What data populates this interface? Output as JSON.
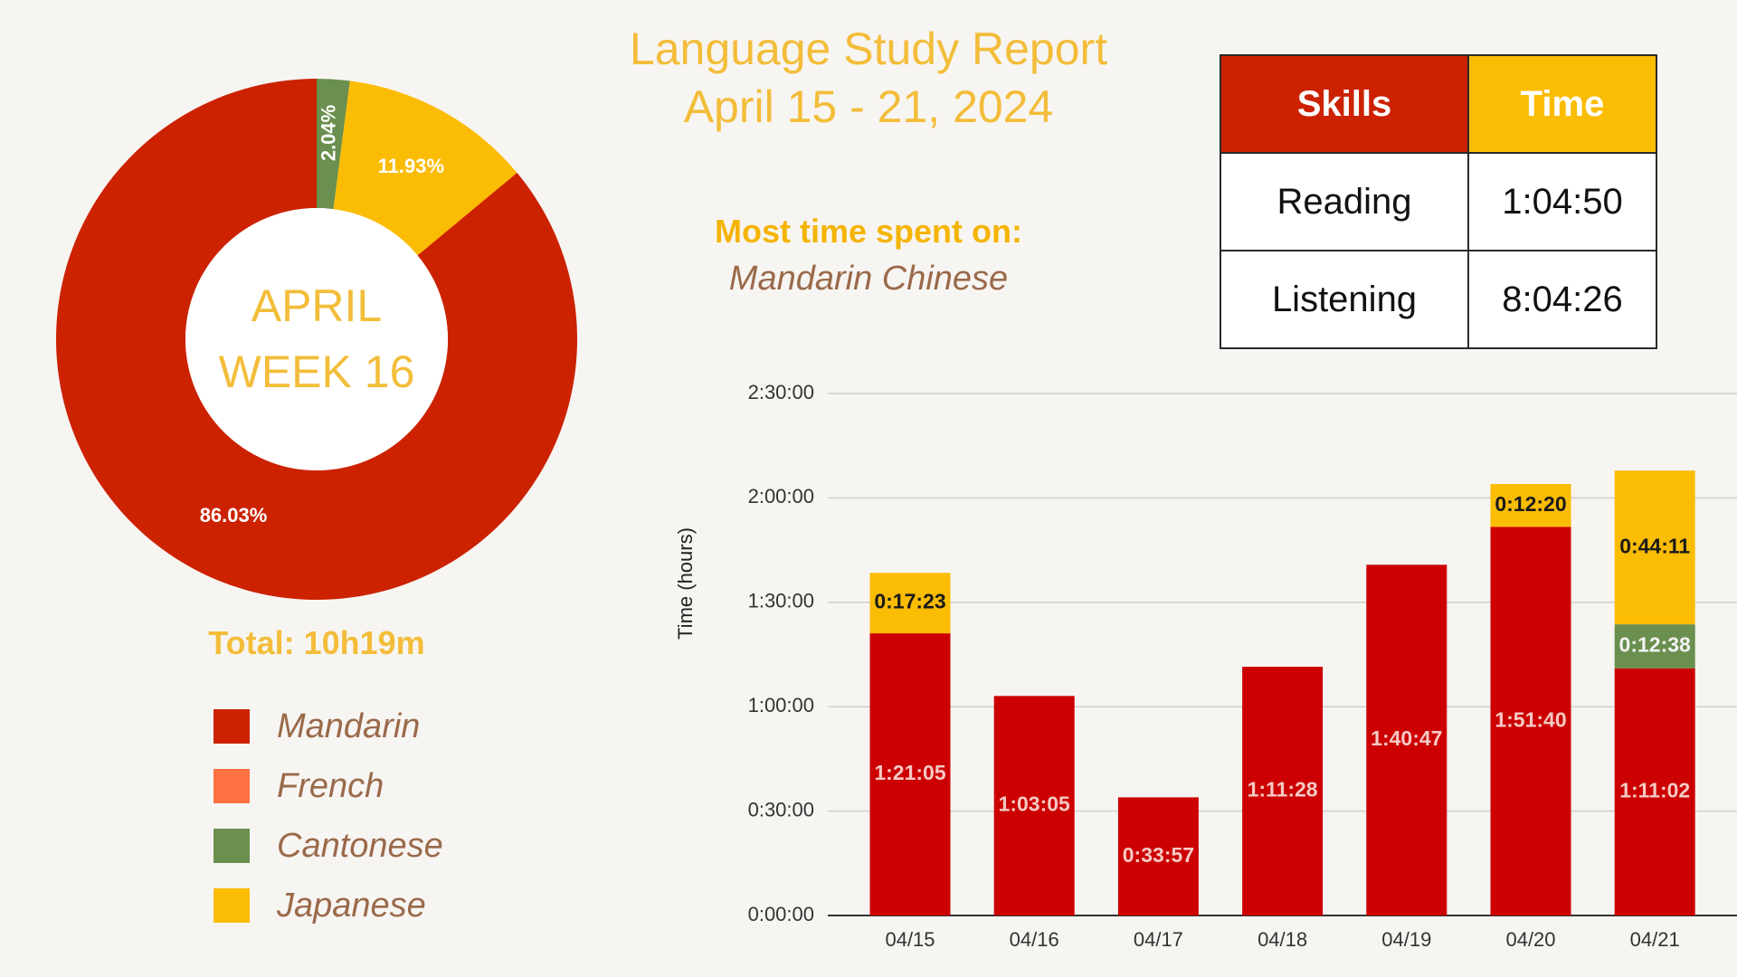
{
  "header": {
    "title": "Language Study Report",
    "date_range": "April 15 - 21, 2024"
  },
  "most_time": {
    "label": "Most time spent on:",
    "value": "Mandarin Chinese"
  },
  "skills_table": {
    "headers": [
      "Skills",
      "Time"
    ],
    "header_colors": [
      "#cc2200",
      "#fbbc04"
    ],
    "rows": [
      [
        "Reading",
        "1:04:50"
      ],
      [
        "Listening",
        "8:04:26"
      ]
    ]
  },
  "total": "Total: 10h19m",
  "legend": [
    {
      "name": "Mandarin",
      "color": "#cc2200"
    },
    {
      "name": "French",
      "color": "#ff7043"
    },
    {
      "name": "Cantonese",
      "color": "#6a8f4e"
    },
    {
      "name": "Japanese",
      "color": "#fbbc04"
    }
  ],
  "chart_data": [
    {
      "type": "pie",
      "donut": true,
      "center_label": [
        "APRIL",
        "WEEK 16"
      ],
      "slices": [
        {
          "name": "Mandarin",
          "value": 86.03,
          "label": "86.03%",
          "color": "#cc2200"
        },
        {
          "name": "Cantonese",
          "value": 2.04,
          "label": "2.04%",
          "color": "#6a8f4e"
        },
        {
          "name": "Japanese",
          "value": 11.93,
          "label": "11.93%",
          "color": "#fbbc04"
        }
      ]
    },
    {
      "type": "bar",
      "stacked": true,
      "categories": [
        "04/15",
        "04/16",
        "04/17",
        "04/18",
        "04/19",
        "04/20",
        "04/21"
      ],
      "ylabel": "Time (hours)",
      "ylim": [
        0,
        9000
      ],
      "yticks": [
        {
          "value": 0,
          "label": "0:00:00"
        },
        {
          "value": 1800,
          "label": "0:30:00"
        },
        {
          "value": 3600,
          "label": "1:00:00"
        },
        {
          "value": 5400,
          "label": "1:30:00"
        },
        {
          "value": 7200,
          "label": "2:00:00"
        },
        {
          "value": 9000,
          "label": "2:30:00"
        }
      ],
      "grid": true,
      "series": [
        {
          "name": "Mandarin",
          "color": "#cc0000",
          "label_color": "#f6c9c4",
          "values": [
            4865,
            3785,
            2037,
            4288,
            6047,
            6700,
            4262
          ],
          "labels": [
            "1:21:05",
            "1:03:05",
            "0:33:57",
            "1:11:28",
            "1:40:47",
            "1:51:40",
            "1:11:02"
          ]
        },
        {
          "name": "Cantonese",
          "color": "#6a8f4e",
          "label_color": "#f2f2f2",
          "values": [
            0,
            0,
            0,
            0,
            0,
            0,
            758
          ],
          "labels": [
            "",
            "",
            "",
            "",
            "",
            "",
            "0:12:38"
          ]
        },
        {
          "name": "Japanese",
          "color": "#fbbc04",
          "label_color": "#1a1a1a",
          "values": [
            1043,
            0,
            0,
            0,
            0,
            740,
            2651
          ],
          "labels": [
            "0:17:23",
            "",
            "",
            "",
            "",
            "0:12:20",
            "0:44:11"
          ]
        }
      ]
    }
  ]
}
